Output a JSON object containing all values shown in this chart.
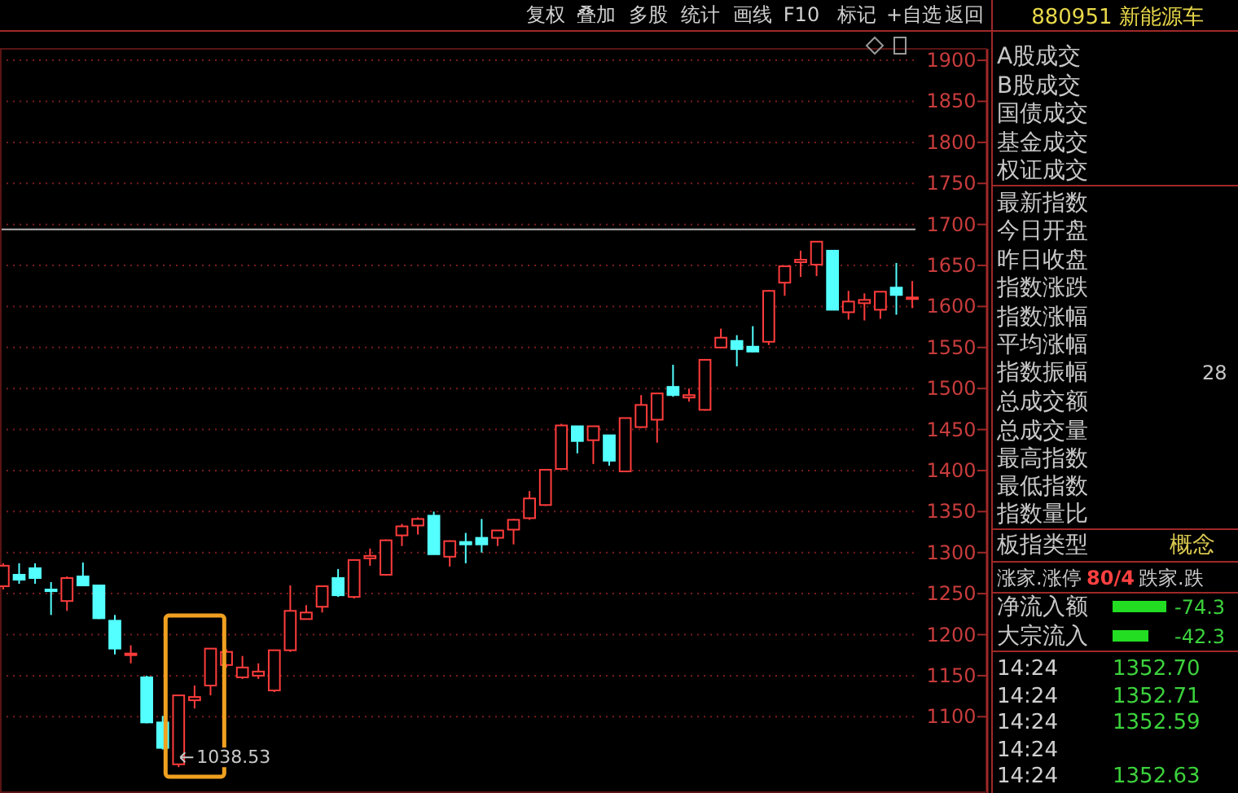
{
  "chart_data": [
    {
      "type": "candlestick",
      "categories": [
        null,
        null,
        null,
        null,
        null,
        null,
        null,
        null,
        null,
        null,
        null,
        null,
        null,
        null,
        null,
        null,
        null,
        null,
        null,
        null,
        null,
        null,
        null,
        null,
        null,
        null,
        null,
        null,
        null,
        null,
        null,
        null,
        null,
        null,
        null,
        null,
        null,
        null,
        null,
        null,
        null,
        null,
        null,
        null,
        null,
        null,
        null,
        null,
        null,
        null,
        null,
        null,
        null,
        null,
        null,
        null,
        null,
        null
      ],
      "ohlc": [
        [
          1259,
          1287,
          1255,
          1284
        ],
        [
          1273,
          1287,
          1262,
          1267
        ],
        [
          1281,
          1287,
          1262,
          1269
        ],
        [
          1255,
          1264,
          1224,
          1253
        ],
        [
          1241,
          1271,
          1229,
          1269
        ],
        [
          1271,
          1288,
          1259,
          1260
        ],
        [
          1260,
          1261,
          1219,
          1220
        ],
        [
          1217,
          1224,
          1176,
          1183
        ],
        [
          1175,
          1187,
          1165,
          1177
        ],
        [
          1148,
          1150,
          1092,
          1093
        ],
        [
          1093,
          1101,
          1060,
          1062
        ],
        [
          1042,
          1126,
          1038.53,
          1126
        ],
        [
          1120,
          1138,
          1110,
          1124
        ],
        [
          1138,
          1183,
          1126,
          1183
        ],
        [
          1163,
          1182,
          1160,
          1179
        ],
        [
          1148,
          1174,
          1146,
          1160
        ],
        [
          1150,
          1165,
          1146,
          1155
        ],
        [
          1132,
          1181,
          1130,
          1181
        ],
        [
          1181,
          1260,
          1179,
          1229
        ],
        [
          1219,
          1236,
          1219,
          1227
        ],
        [
          1234,
          1259,
          1227,
          1259
        ],
        [
          1269,
          1280,
          1246,
          1248
        ],
        [
          1246,
          1291,
          1244,
          1291
        ],
        [
          1293,
          1305,
          1284,
          1296
        ],
        [
          1273,
          1316,
          1272,
          1315
        ],
        [
          1321,
          1335,
          1308,
          1332
        ],
        [
          1333,
          1343,
          1322,
          1341
        ],
        [
          1345,
          1350,
          1298,
          1298
        ],
        [
          1295,
          1315,
          1283,
          1314
        ],
        [
          1313,
          1324,
          1287,
          1310
        ],
        [
          1318,
          1341,
          1300,
          1310
        ],
        [
          1318,
          1327,
          1308,
          1327
        ],
        [
          1328,
          1341,
          1310,
          1340
        ],
        [
          1342,
          1375,
          1340,
          1366
        ],
        [
          1358,
          1401,
          1357,
          1401
        ],
        [
          1402,
          1457,
          1402,
          1455
        ],
        [
          1454,
          1454,
          1421,
          1436
        ],
        [
          1437,
          1454,
          1408,
          1454
        ],
        [
          1443,
          1443,
          1406,
          1412
        ],
        [
          1399,
          1464,
          1398,
          1464
        ],
        [
          1453,
          1492,
          1452,
          1480
        ],
        [
          1462,
          1494,
          1434,
          1494
        ],
        [
          1502,
          1529,
          1490,
          1492
        ],
        [
          1489,
          1500,
          1484,
          1492
        ],
        [
          1474,
          1536,
          1473,
          1535
        ],
        [
          1550,
          1573,
          1549,
          1562
        ],
        [
          1558,
          1565,
          1527,
          1548
        ],
        [
          1551,
          1576,
          1544,
          1545
        ],
        [
          1557,
          1620,
          1553,
          1619
        ],
        [
          1629,
          1650,
          1613,
          1649
        ],
        [
          1654,
          1668,
          1636,
          1657
        ],
        [
          1651,
          1679,
          1637,
          1679
        ],
        [
          1668,
          1668,
          1596,
          1596
        ],
        [
          1593,
          1619,
          1584,
          1606
        ],
        [
          1604,
          1616,
          1583,
          1608
        ],
        [
          1596,
          1618,
          1585,
          1618
        ],
        [
          1623,
          1653,
          1590,
          1614
        ],
        [
          1610,
          1631,
          1598,
          1611
        ]
      ],
      "colors": [
        "#ff3c3c",
        "#54ffff",
        "#54ffff",
        "#54ffff",
        "#ff3c3c",
        "#54ffff",
        "#54ffff",
        "#54ffff",
        "#ff3c3c",
        "#54ffff",
        "#54ffff",
        "#ff3c3c",
        "#ff3c3c",
        "#ff3c3c",
        "#ff3c3c",
        "#ff3c3c",
        "#ff3c3c",
        "#ff3c3c",
        "#ff3c3c",
        "#ff3c3c",
        "#ff3c3c",
        "#54ffff",
        "#ff3c3c",
        "#ff3c3c",
        "#ff3c3c",
        "#ff3c3c",
        "#ff3c3c",
        "#54ffff",
        "#ff3c3c",
        "#54ffff",
        "#54ffff",
        "#ff3c3c",
        "#ff3c3c",
        "#ff3c3c",
        "#ff3c3c",
        "#ff3c3c",
        "#54ffff",
        "#ff3c3c",
        "#54ffff",
        "#ff3c3c",
        "#ff3c3c",
        "#ff3c3c",
        "#54ffff",
        "#ff3c3c",
        "#ff3c3c",
        "#ff3c3c",
        "#54ffff",
        "#54ffff",
        "#ff3c3c",
        "#ff3c3c",
        "#ff3c3c",
        "#ff3c3c",
        "#54ffff",
        "#ff3c3c",
        "#ff3c3c",
        "#ff3c3c",
        "#54ffff",
        "#ff3c3c"
      ],
      "ylim": [
        1007,
        1914
      ],
      "yticks": [
        1100,
        1150,
        1200,
        1250,
        1300,
        1350,
        1400,
        1450,
        1500,
        1550,
        1600,
        1650,
        1700,
        1750,
        1800,
        1850,
        1900
      ],
      "grid": "y",
      "tick_labels": "y",
      "ref_lines": [
        {
          "axis": "y",
          "value": 1694,
          "color": "#b4b4b4"
        }
      ],
      "annotations": [
        "1038.53"
      ]
    },
    {
      "type": "other",
      "title": "880951 新能源车",
      "annotations": [
        "复权",
        "叠加",
        "多股",
        "统计",
        "画线",
        "F10",
        "标记",
        "+自选",
        "返回",
        "A股成交",
        "B股成交",
        "国债成交",
        "基金成交",
        "权证成交",
        "最新指数",
        "今日开盘",
        "昨日收盘",
        "指数涨跌",
        "指数涨幅",
        "平均涨幅",
        "指数振幅",
        "总成交额",
        "总成交量",
        "最高指数",
        "最低指数",
        "指数量比",
        "板指类型",
        "概念",
        "涨家.涨停",
        "80/4",
        "跌家.跌",
        "净流入额",
        "-74.3",
        "大宗流入",
        "-42.3",
        "28",
        "14:24",
        "1352.70",
        "14:24",
        "1352.71",
        "14:24",
        "1352.59",
        "14:24",
        "14:24",
        "1352.63"
      ]
    }
  ]
}
